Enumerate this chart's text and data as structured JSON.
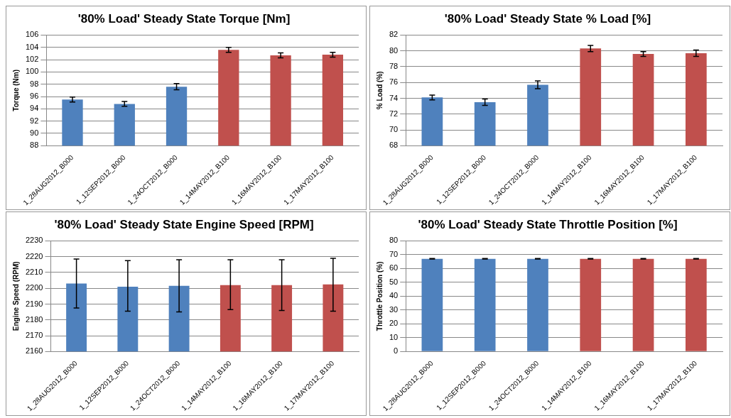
{
  "chart_data": [
    {
      "type": "bar",
      "title": "'80% Load' Steady State Torque [Nm]",
      "ylabel": "Torque (Nm)",
      "categories": [
        "1_28AUG2012_B000",
        "1_12SEP2012_B000",
        "1_24OCT2012_B000",
        "1_14MAY2012_B100",
        "1_16MAY2012_B100",
        "1_17MAY2012_B100"
      ],
      "values": [
        95.5,
        94.8,
        97.6,
        103.6,
        102.7,
        102.8
      ],
      "errors": [
        0.4,
        0.4,
        0.5,
        0.4,
        0.4,
        0.4
      ],
      "colors": [
        "#4f81bd",
        "#4f81bd",
        "#4f81bd",
        "#c0504d",
        "#c0504d",
        "#c0504d"
      ],
      "ylim": [
        88,
        106
      ],
      "yticks": [
        88,
        90,
        92,
        94,
        96,
        98,
        100,
        102,
        104,
        106
      ],
      "grid": "y",
      "legend": false
    },
    {
      "type": "bar",
      "title": "'80% Load' Steady State % Load [%]",
      "ylabel": "% Load (%)",
      "categories": [
        "1_28AUG2012_B000",
        "1_12SEP2012_B000",
        "1_24OCT2012_B000",
        "1_14MAY2012_B100",
        "1_16MAY2012_B100",
        "1_17MAY2012_B100"
      ],
      "values": [
        74.1,
        73.5,
        75.7,
        80.3,
        79.6,
        79.7
      ],
      "errors": [
        0.3,
        0.4,
        0.5,
        0.4,
        0.3,
        0.4
      ],
      "colors": [
        "#4f81bd",
        "#4f81bd",
        "#4f81bd",
        "#c0504d",
        "#c0504d",
        "#c0504d"
      ],
      "ylim": [
        68,
        82
      ],
      "yticks": [
        68,
        70,
        72,
        74,
        76,
        78,
        80,
        82
      ],
      "grid": "y",
      "legend": false
    },
    {
      "type": "bar",
      "title": "'80% Load' Steady State Engine Speed [RPM]",
      "ylabel": "Engine Speed (RPM)",
      "categories": [
        "1_28AUG2012_B000",
        "1_12SEP2012_B000",
        "1_24OCT2012_B000",
        "1_14MAY2012_B100",
        "1_16MAY2012_B100",
        "1_17MAY2012_B100"
      ],
      "values": [
        2203,
        2201,
        2201.5,
        2202,
        2202,
        2202.5
      ],
      "errors": [
        [
          2187.5,
          2218.5
        ],
        [
          2185.5,
          2217.5
        ],
        [
          2185,
          2218
        ],
        [
          2186.5,
          2218
        ],
        [
          2186,
          2218
        ],
        [
          2185.5,
          2219
        ]
      ],
      "colors": [
        "#4f81bd",
        "#4f81bd",
        "#4f81bd",
        "#c0504d",
        "#c0504d",
        "#c0504d"
      ],
      "ylim": [
        2160,
        2230
      ],
      "yticks": [
        2160,
        2170,
        2180,
        2190,
        2200,
        2210,
        2220,
        2230
      ],
      "grid": "y",
      "legend": false
    },
    {
      "type": "bar",
      "title": "'80% Load' Steady State Throttle Position [%]",
      "ylabel": "Throttle Position (%)",
      "categories": [
        "1_28AUG2012_B000",
        "1_12SEP2012_B000",
        "1_24OCT2012_B000",
        "1_14MAY2012_B100",
        "1_16MAY2012_B100",
        "1_17MAY2012_B100"
      ],
      "values": [
        67,
        67,
        67,
        67,
        67,
        67
      ],
      "errors": [
        0.2,
        0.2,
        0.2,
        0.2,
        0.2,
        0.2
      ],
      "colors": [
        "#4f81bd",
        "#4f81bd",
        "#4f81bd",
        "#c0504d",
        "#c0504d",
        "#c0504d"
      ],
      "ylim": [
        0,
        80
      ],
      "yticks": [
        0,
        10,
        20,
        30,
        40,
        50,
        60,
        70,
        80
      ],
      "grid": "y",
      "legend": false
    }
  ]
}
